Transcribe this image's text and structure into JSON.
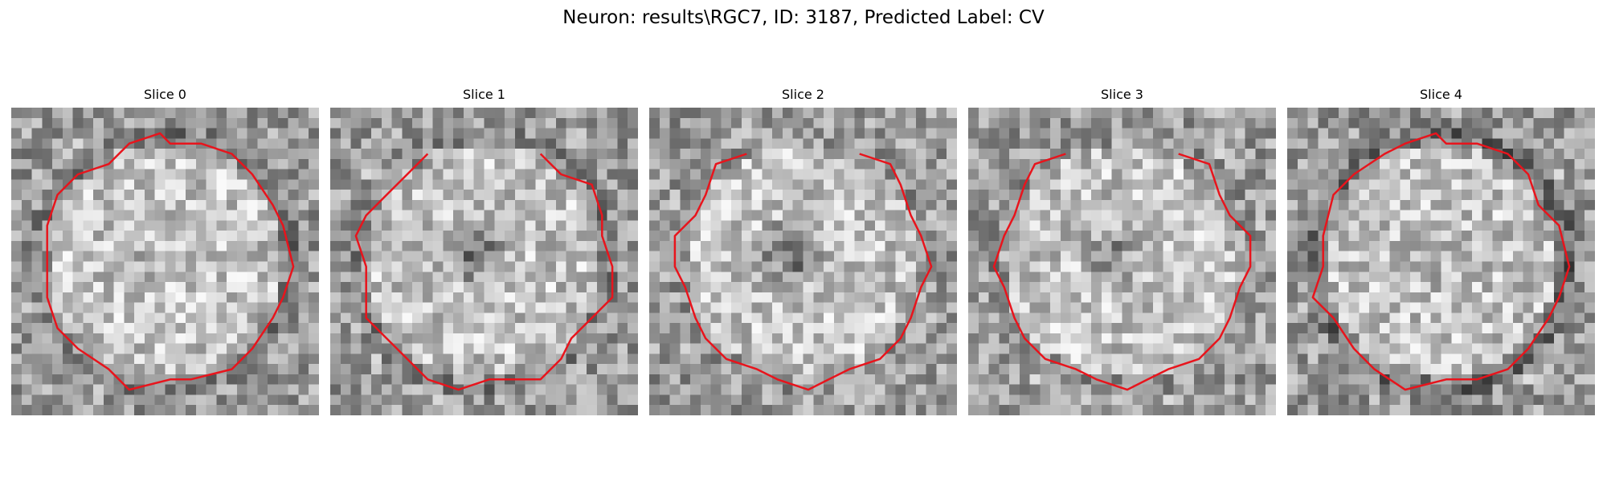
{
  "figure": {
    "title": "Neuron: results\\RGC7, ID: 3187, Predicted Label: CV"
  },
  "panels": [
    {
      "title": "Slice 0",
      "seed": 11,
      "dark_center": 0.1,
      "ring": 0.7,
      "open": false
    },
    {
      "title": "Slice 1",
      "seed": 23,
      "dark_center": 0.9,
      "ring": 0.6,
      "open": true
    },
    {
      "title": "Slice 2",
      "seed": 37,
      "dark_center": 1.0,
      "ring": 0.3,
      "open": true
    },
    {
      "title": "Slice 3",
      "seed": 51,
      "dark_center": 0.6,
      "ring": 0.4,
      "open": true
    },
    {
      "title": "Slice 4",
      "seed": 67,
      "dark_center": 0.2,
      "ring": 1.0,
      "open": false
    }
  ],
  "colors": {
    "contour": "#e8141c",
    "background": "#ffffff"
  }
}
